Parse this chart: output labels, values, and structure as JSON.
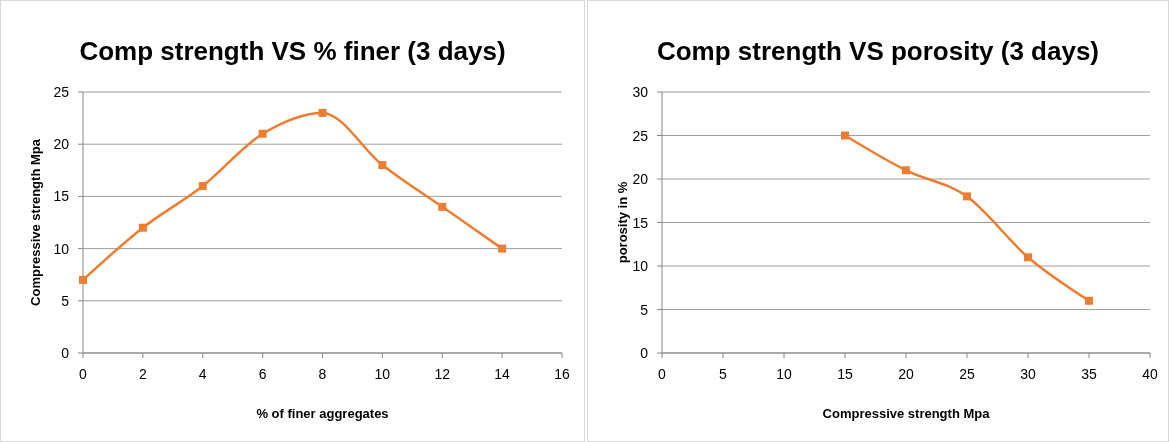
{
  "chart_data": [
    {
      "type": "line",
      "title": "Comp strength VS % finer (3 days)",
      "xlabel": "% of finer aggregates",
      "ylabel": "Compressive strength Mpa",
      "x": [
        0,
        2,
        4,
        6,
        8,
        10,
        12,
        14
      ],
      "series": [
        {
          "color": "#ed7d31",
          "values": [
            7,
            12,
            16,
            21,
            23,
            18,
            14,
            10
          ]
        }
      ],
      "xlim": [
        0,
        16
      ],
      "xticks": [
        0,
        2,
        4,
        6,
        8,
        10,
        12,
        14,
        16
      ],
      "ylim": [
        0,
        25
      ],
      "yticks": [
        0,
        5,
        10,
        15,
        20,
        25
      ],
      "grid": "y",
      "marker": "square",
      "line_style": "solid"
    },
    {
      "type": "line",
      "title": "Comp strength  VS porosity (3 days)",
      "xlabel": "Compressive strength Mpa",
      "ylabel": "porosity in %",
      "x": [
        15,
        20,
        25,
        30,
        35
      ],
      "series": [
        {
          "color": "#ed7d31",
          "values": [
            25,
            21,
            18,
            11,
            6
          ]
        }
      ],
      "xlim": [
        0,
        40
      ],
      "xticks": [
        0,
        5,
        10,
        15,
        20,
        25,
        30,
        35,
        40
      ],
      "ylim": [
        0,
        30
      ],
      "yticks": [
        0,
        5,
        10,
        15,
        20,
        25,
        30
      ],
      "grid": "y",
      "marker": "square",
      "line_style": "solid"
    }
  ]
}
